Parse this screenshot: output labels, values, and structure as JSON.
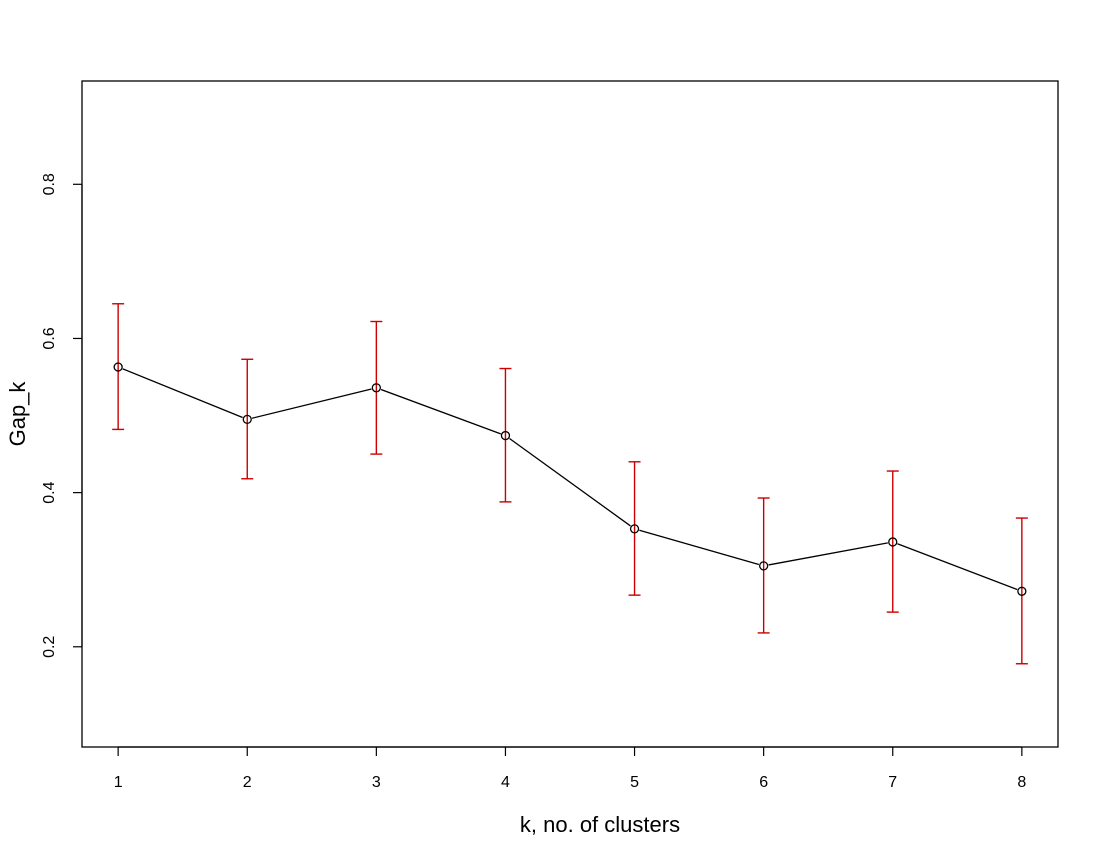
{
  "chart_data": {
    "type": "line",
    "title": "",
    "xlabel": "k, no. of clusters",
    "ylabel": "Gap_k",
    "x": [
      1,
      2,
      3,
      4,
      5,
      6,
      7,
      8
    ],
    "series": [
      {
        "values": [
          0.563,
          0.495,
          0.536,
          0.474,
          0.353,
          0.305,
          0.336,
          0.272
        ],
        "error_low": [
          0.482,
          0.418,
          0.45,
          0.388,
          0.267,
          0.218,
          0.245,
          0.178
        ],
        "error_high": [
          0.645,
          0.573,
          0.622,
          0.561,
          0.44,
          0.393,
          0.428,
          0.367
        ]
      }
    ],
    "xticks": [
      "1",
      "2",
      "3",
      "4",
      "5",
      "6",
      "7",
      "8"
    ],
    "yticks": [
      "0.2",
      "0.4",
      "0.6",
      "0.8"
    ],
    "xlim": [
      0.72,
      8.28
    ],
    "ylim": [
      0.07,
      0.934
    ],
    "grid": false,
    "colors": {
      "line": "#000000",
      "points": "#000000",
      "error_bars": "#cc0000"
    }
  }
}
